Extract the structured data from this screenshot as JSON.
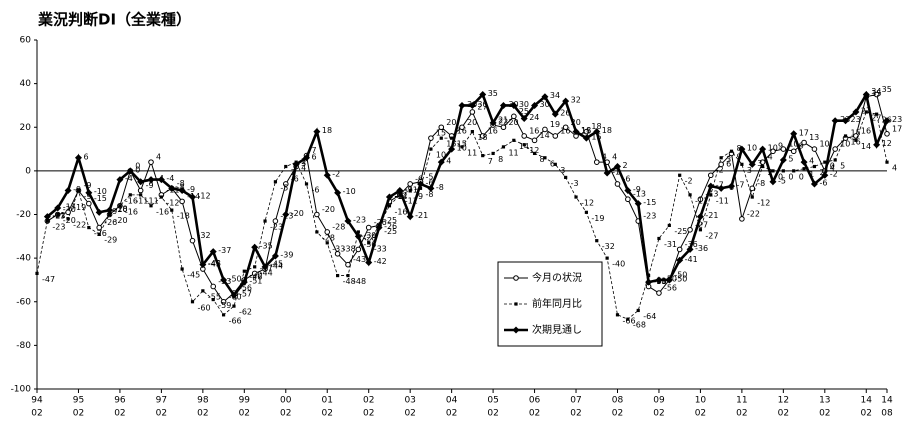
{
  "chart_data": {
    "type": "line",
    "title": "業況判断DI（全業種）",
    "categories": [
      "94",
      null,
      null,
      null,
      "95",
      null,
      null,
      null,
      "96",
      null,
      null,
      null,
      "97",
      null,
      null,
      null,
      "98",
      null,
      null,
      null,
      "99",
      null,
      null,
      null,
      "00",
      null,
      null,
      null,
      "01",
      null,
      null,
      null,
      "02",
      null,
      null,
      null,
      "03",
      null,
      null,
      null,
      "04",
      null,
      null,
      null,
      "05",
      null,
      null,
      null,
      "06",
      null,
      null,
      null,
      "07",
      null,
      null,
      null,
      "08",
      null,
      null,
      null,
      "09",
      null,
      null,
      null,
      "10",
      null,
      null,
      null,
      "11",
      null,
      null,
      null,
      "12",
      null,
      null,
      null,
      "13",
      null,
      null,
      null,
      "14",
      null,
      "14"
    ],
    "months": [
      "02",
      null,
      null,
      null,
      "02",
      null,
      null,
      null,
      "02",
      null,
      null,
      null,
      "02",
      null,
      null,
      null,
      "02",
      null,
      null,
      null,
      "02",
      null,
      null,
      null,
      "02",
      null,
      null,
      null,
      "02",
      null,
      null,
      null,
      "02",
      null,
      null,
      null,
      "02",
      null,
      null,
      null,
      "02",
      null,
      null,
      null,
      "02",
      null,
      null,
      null,
      "02",
      null,
      null,
      null,
      "02",
      null,
      null,
      null,
      "02",
      null,
      null,
      null,
      "02",
      null,
      null,
      null,
      "02",
      null,
      null,
      null,
      "02",
      null,
      null,
      null,
      "02",
      null,
      null,
      null,
      "02",
      null,
      null,
      null,
      "02",
      null,
      "08"
    ],
    "series": [
      {
        "name": "今月の状況",
        "color": "#000000",
        "style": "open-circle",
        "values": [
          null,
          -23,
          -20,
          -19,
          -9,
          -15,
          -26,
          -20,
          -16,
          0,
          -9,
          4,
          -11,
          -8,
          -14,
          -32,
          -45,
          -53,
          -60,
          -56,
          -50,
          -47,
          -45,
          -23,
          -6,
          2,
          7,
          -20,
          -28,
          -38,
          -43,
          -36,
          -26,
          -25,
          -14,
          -11,
          -6,
          -5,
          15,
          20,
          16,
          20,
          27,
          16,
          21,
          20,
          25,
          16,
          14,
          19,
          16,
          20,
          16,
          18,
          4,
          4,
          -6,
          -13,
          -23,
          -53,
          -56,
          -50,
          -36,
          -27,
          -13,
          -2,
          3,
          8,
          -22,
          -8,
          4,
          9,
          10,
          9,
          13,
          10,
          0,
          10,
          15,
          16,
          34,
          35,
          17
        ]
      },
      {
        "name": "前年同月比",
        "color": "#000000",
        "style": "dot",
        "values": [
          -47,
          -23,
          -20,
          -22,
          -9,
          -26,
          -29,
          -20,
          -16,
          -11,
          -11,
          -16,
          -12,
          -18,
          -45,
          -60,
          -55,
          -59,
          -66,
          -62,
          -46,
          -44,
          -23,
          -5,
          2,
          4,
          -6,
          -28,
          -33,
          -48,
          -48,
          -28,
          -33,
          -25,
          -16,
          -11,
          -9,
          -8,
          10,
          15,
          15,
          11,
          18,
          7,
          8,
          11,
          14,
          12,
          8,
          6,
          3,
          -3,
          -12,
          -19,
          -32,
          -40,
          -66,
          -68,
          -64,
          -48,
          -31,
          -25,
          -2,
          -11,
          -27,
          -11,
          6,
          9,
          3,
          -12,
          2,
          0,
          0,
          0,
          1,
          2,
          4,
          5,
          16,
          14,
          27,
          26,
          4
        ]
      },
      {
        "name": "次期見通し",
        "color": "#000000",
        "style": "bold",
        "values": [
          null,
          -21,
          -17,
          -9,
          6,
          -10,
          -19,
          -18,
          -4,
          0,
          -5,
          -4,
          -4,
          -8,
          -9,
          -12,
          -43,
          -37,
          -50,
          -57,
          -51,
          -35,
          -44,
          -39,
          -20,
          3,
          6,
          18,
          -2,
          -10,
          -23,
          -30,
          -42,
          -26,
          -12,
          -9,
          -21,
          -6,
          -8,
          4,
          10,
          30,
          30,
          35,
          22,
          30,
          30,
          24,
          30,
          34,
          26,
          32,
          18,
          15,
          18,
          -1,
          2,
          -9,
          -15,
          -51,
          -50,
          -50,
          -41,
          -36,
          -21,
          -7,
          -8,
          -7,
          10,
          3,
          10,
          -5,
          5,
          17,
          4,
          -6,
          -2,
          23,
          23,
          27,
          35,
          12,
          23
        ]
      }
    ],
    "ylim": [
      -100,
      60
    ],
    "yticks": [
      -100,
      -80,
      -60,
      -40,
      -20,
      0,
      20,
      40,
      60
    ],
    "zero_line": true
  }
}
